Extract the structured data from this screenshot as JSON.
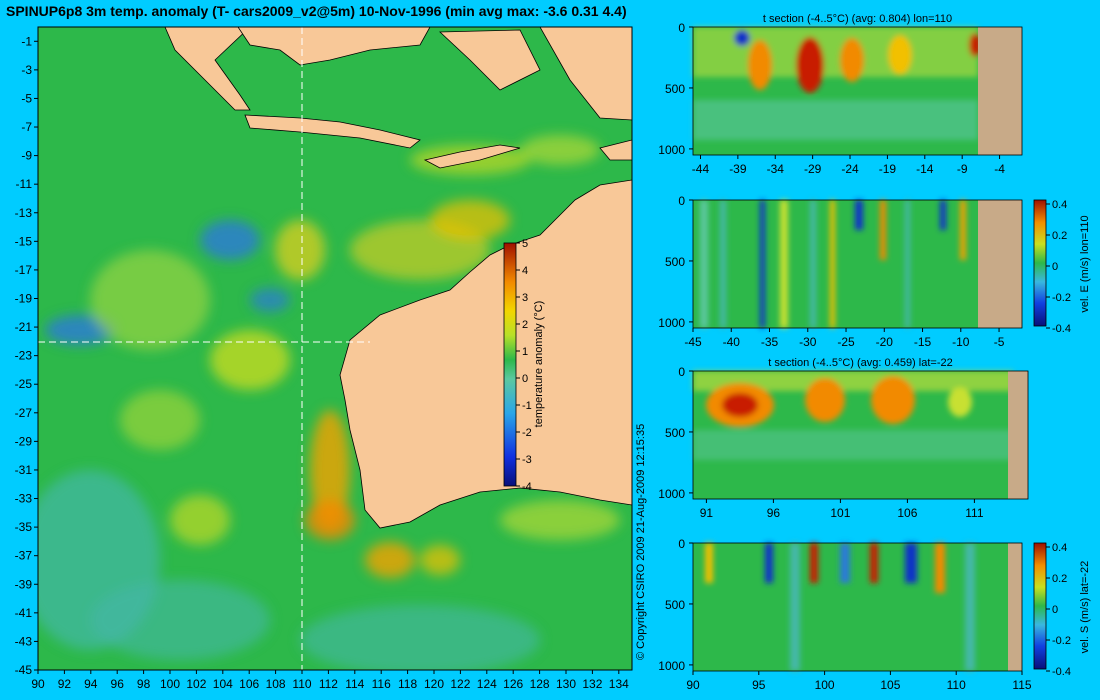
{
  "title": "SPINUP6p8 3m temp. anomaly (T- cars2009_v2@5m) 10-Nov-1996 (min avg max: -3.6 0.31 4.4)",
  "copyright": "© Copyright CSIRO 2009   21-Aug-2009 12:15:35",
  "colors": {
    "background": "#00ccff",
    "land": "#f8c898",
    "section_land": "#c8aa88",
    "ocean_base": "#2db84a",
    "warm": "#f2a200",
    "hot": "#c81e00",
    "cool": "#44b8a8",
    "cold": "#1030c8"
  },
  "chart_data": [
    {
      "type": "heatmap",
      "name": "map",
      "title": "SPINUP6p8 3m temp. anomaly (T- cars2009_v2@5m) 10-Nov-1996 (min avg max: -3.6 0.31 4.4)",
      "x_ticks": [
        "90",
        "92",
        "94",
        "96",
        "98",
        "100",
        "102",
        "104",
        "106",
        "108",
        "110",
        "112",
        "114",
        "116",
        "118",
        "120",
        "122",
        "124",
        "126",
        "128",
        "130",
        "132",
        "134"
      ],
      "y_ticks": [
        "-1",
        "-3",
        "-5",
        "-7",
        "-9",
        "-11",
        "-13",
        "-15",
        "-17",
        "-19",
        "-21",
        "-23",
        "-25",
        "-27",
        "-29",
        "-31",
        "-33",
        "-35",
        "-37",
        "-39",
        "-41",
        "-43",
        "-45"
      ],
      "xlim": [
        90,
        135
      ],
      "ylim": [
        -45,
        0
      ],
      "section_lon": 110,
      "section_lat": -22,
      "colorbar": {
        "label": "temperature anomaly (°C)",
        "range": [
          -4,
          5
        ],
        "ticks": [
          "5",
          "4",
          "3",
          "2",
          "1",
          "0",
          "-1",
          "-2",
          "-3",
          "-4"
        ]
      }
    },
    {
      "type": "heatmap",
      "name": "t-section-lon110",
      "title": "t section (-4..5°C) (avg: 0.804) lon=110",
      "x_ticks": [
        "-44",
        "-39",
        "-34",
        "-29",
        "-24",
        "-19",
        "-14",
        "-9",
        "-4"
      ],
      "y_ticks": [
        "0",
        "500",
        "1000"
      ],
      "xlim": [
        -45,
        -1
      ],
      "ylim": [
        0,
        1050
      ],
      "land_from": -8,
      "warm_cores": [
        -36,
        -29,
        -24,
        -17,
        -9
      ]
    },
    {
      "type": "heatmap",
      "name": "velE-section-lon110",
      "title": "",
      "x_ticks": [
        "-45",
        "-40",
        "-35",
        "-30",
        "-25",
        "-20",
        "-15",
        "-10",
        "-5"
      ],
      "y_ticks": [
        "0",
        "500",
        "1000"
      ],
      "xlim": [
        -45,
        -2
      ],
      "ylim": [
        0,
        1050
      ],
      "land_from": -8,
      "colorbar": {
        "label": "vel. E (m/s) lon=110",
        "range": [
          -0.4,
          0.4
        ],
        "ticks": [
          "0.4",
          "0.2",
          "0",
          "-0.2",
          "-0.4"
        ]
      }
    },
    {
      "type": "heatmap",
      "name": "t-section-lat-22",
      "title": "t section (-4..5°C) (avg: 0.459) lat=-22",
      "x_ticks": [
        "91",
        "96",
        "101",
        "106",
        "111"
      ],
      "y_ticks": [
        "0",
        "500",
        "1000"
      ],
      "xlim": [
        90,
        115
      ],
      "ylim": [
        0,
        1050
      ],
      "land_from": 113.5,
      "warm_cores": [
        93,
        100,
        104.5
      ]
    },
    {
      "type": "heatmap",
      "name": "velS-section-lat-22",
      "title": "",
      "x_ticks": [
        "90",
        "95",
        "100",
        "105",
        "110",
        "115"
      ],
      "y_ticks": [
        "0",
        "500",
        "1000"
      ],
      "xlim": [
        90,
        115
      ],
      "ylim": [
        0,
        1050
      ],
      "land_from": 113.5,
      "colorbar": {
        "label": "vel. S (m/s) lat=-22",
        "range": [
          -0.4,
          0.4
        ],
        "ticks": [
          "0.4",
          "0.2",
          "0",
          "-0.2",
          "-0.4"
        ]
      }
    }
  ]
}
